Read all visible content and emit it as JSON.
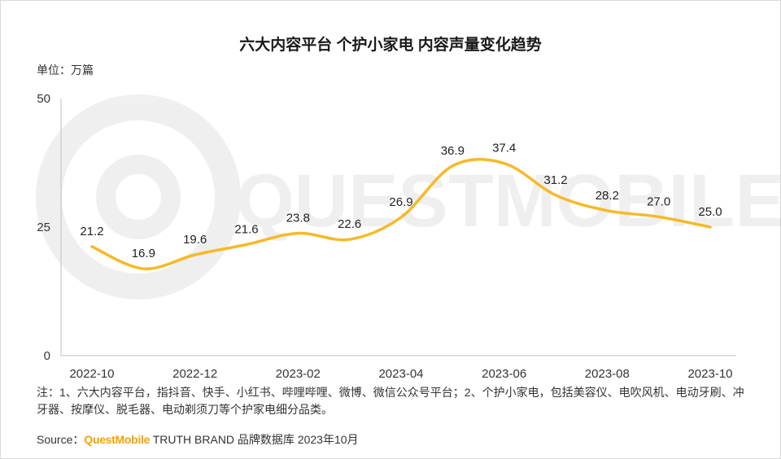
{
  "chart_data": {
    "type": "line",
    "title": "六大内容平台 个护小家电 内容声量变化趋势",
    "unit_label": "单位：万篇",
    "categories": [
      "2022-10",
      "2022-11",
      "2022-12",
      "2023-01",
      "2023-02",
      "2023-03",
      "2023-04",
      "2023-05",
      "2023-06",
      "2023-07",
      "2023-08",
      "2023-09",
      "2023-10"
    ],
    "x_tick_labels": [
      "2022-10",
      "2022-12",
      "2023-02",
      "2023-04",
      "2023-06",
      "2023-08",
      "2023-10"
    ],
    "values": [
      21.2,
      16.9,
      19.6,
      21.6,
      23.8,
      22.6,
      26.9,
      36.9,
      37.4,
      31.2,
      28.2,
      27.0,
      25.0
    ],
    "value_labels": [
      "21.2",
      "16.9",
      "19.6",
      "21.6",
      "23.8",
      "22.6",
      "26.9",
      "36.9",
      "37.4",
      "31.2",
      "28.2",
      "27.0",
      "25.0"
    ],
    "y_ticks": [
      "50",
      "25",
      "0"
    ],
    "ylim": [
      0,
      50
    ],
    "line_color": "#f7b928",
    "grid": false,
    "legend": "none"
  },
  "footnote": "注：1、六大内容平台，指抖音、快手、小红书、哔哩哔哩、微博、微信公众号平台；2、个护小家电，包括美容仪、电吹风机、电动牙刷、冲牙器、按摩仪、脱毛器、电动剃须刀等个护家电细分品类。",
  "source": {
    "prefix": "Source：",
    "brand": "QuestMobile",
    "text": " TRUTH BRAND 品牌数据库 2023年10月"
  },
  "watermark": "QUESTMOBILE"
}
